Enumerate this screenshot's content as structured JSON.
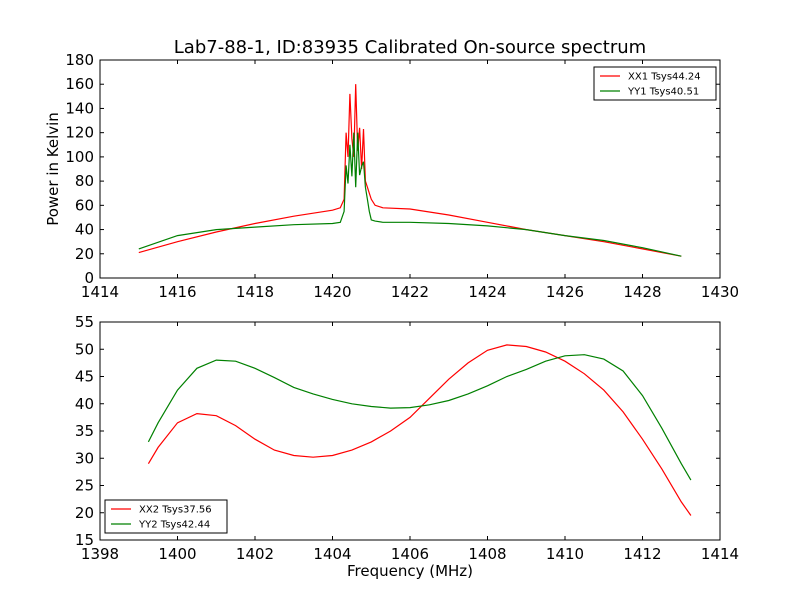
{
  "chart_data": [
    {
      "type": "line",
      "title": "Lab7-88-1, ID:83935 Calibrated On-source spectrum",
      "xlabel": "",
      "ylabel": "Power in Kelvin",
      "xlim": [
        1414,
        1430
      ],
      "ylim": [
        0,
        180
      ],
      "xticks": [
        1414,
        1416,
        1418,
        1420,
        1422,
        1424,
        1426,
        1428,
        1430
      ],
      "yticks": [
        0,
        20,
        40,
        60,
        80,
        100,
        120,
        140,
        160,
        180
      ],
      "grid": false,
      "legend": "top-right",
      "series": [
        {
          "name": "XX1 Tsys44.24",
          "color": "#ff0000",
          "x": [
            1415.0,
            1416.0,
            1417.0,
            1418.0,
            1419.0,
            1420.0,
            1420.2,
            1420.3,
            1420.35,
            1420.4,
            1420.45,
            1420.5,
            1420.55,
            1420.6,
            1420.65,
            1420.7,
            1420.75,
            1420.8,
            1420.85,
            1420.9,
            1420.95,
            1421.0,
            1421.1,
            1421.3,
            1422.0,
            1423.0,
            1424.0,
            1425.0,
            1426.0,
            1427.0,
            1428.0,
            1429.0
          ],
          "y": [
            21,
            30,
            38,
            45,
            51,
            56,
            58,
            65,
            120,
            100,
            152,
            115,
            100,
            160,
            105,
            124,
            90,
            123,
            80,
            75,
            70,
            65,
            60,
            58,
            57,
            52,
            46,
            40,
            35,
            30,
            24,
            18
          ]
        },
        {
          "name": "YY1 Tsys40.51",
          "color": "#008000",
          "x": [
            1415.0,
            1416.0,
            1417.0,
            1418.0,
            1419.0,
            1420.0,
            1420.2,
            1420.3,
            1420.35,
            1420.4,
            1420.45,
            1420.5,
            1420.55,
            1420.6,
            1420.65,
            1420.7,
            1420.75,
            1420.8,
            1420.85,
            1420.9,
            1420.95,
            1421.0,
            1421.1,
            1421.3,
            1422.0,
            1423.0,
            1424.0,
            1425.0,
            1426.0,
            1427.0,
            1428.0,
            1429.0
          ],
          "y": [
            24,
            35,
            40,
            42,
            44,
            45,
            46,
            55,
            93,
            78,
            110,
            84,
            120,
            75,
            120,
            85,
            92,
            96,
            75,
            65,
            55,
            48,
            47,
            46,
            46,
            45,
            43,
            40,
            35,
            31,
            25,
            18
          ]
        }
      ]
    },
    {
      "type": "line",
      "title": "",
      "xlabel": "Frequency (MHz)",
      "ylabel": "",
      "xlim": [
        1398,
        1414
      ],
      "ylim": [
        15,
        55
      ],
      "xticks": [
        1398,
        1400,
        1402,
        1404,
        1406,
        1408,
        1410,
        1412,
        1414
      ],
      "yticks": [
        15,
        20,
        25,
        30,
        35,
        40,
        45,
        50,
        55
      ],
      "grid": false,
      "legend": "bottom-left",
      "series": [
        {
          "name": "XX2 Tsys37.56",
          "color": "#ff0000",
          "x": [
            1399.25,
            1399.5,
            1400.0,
            1400.5,
            1401.0,
            1401.5,
            1402.0,
            1402.5,
            1403.0,
            1403.5,
            1404.0,
            1404.5,
            1405.0,
            1405.5,
            1406.0,
            1406.5,
            1407.0,
            1407.5,
            1408.0,
            1408.5,
            1409.0,
            1409.5,
            1410.0,
            1410.5,
            1411.0,
            1411.5,
            1412.0,
            1412.5,
            1413.0,
            1413.25
          ],
          "y": [
            29,
            32,
            36.5,
            38.2,
            37.8,
            36,
            33.5,
            31.5,
            30.5,
            30.2,
            30.5,
            31.5,
            33,
            35,
            37.5,
            41,
            44.5,
            47.5,
            49.8,
            50.8,
            50.5,
            49.5,
            47.8,
            45.5,
            42.5,
            38.5,
            33.5,
            28,
            22,
            19.5
          ]
        },
        {
          "name": "YY2 Tsys42.44",
          "color": "#008000",
          "x": [
            1399.25,
            1399.5,
            1400.0,
            1400.5,
            1401.0,
            1401.5,
            1402.0,
            1402.5,
            1403.0,
            1403.5,
            1404.0,
            1404.5,
            1405.0,
            1405.5,
            1406.0,
            1406.5,
            1407.0,
            1407.5,
            1408.0,
            1408.5,
            1409.0,
            1409.5,
            1410.0,
            1410.5,
            1411.0,
            1411.5,
            1412.0,
            1412.5,
            1413.0,
            1413.25
          ],
          "y": [
            33,
            36.5,
            42.5,
            46.5,
            48,
            47.8,
            46.5,
            44.8,
            43,
            41.8,
            40.8,
            40,
            39.5,
            39.2,
            39.3,
            39.8,
            40.6,
            41.8,
            43.3,
            45,
            46.3,
            47.8,
            48.8,
            49,
            48.2,
            46,
            41.5,
            35.5,
            29,
            26
          ]
        }
      ]
    }
  ]
}
